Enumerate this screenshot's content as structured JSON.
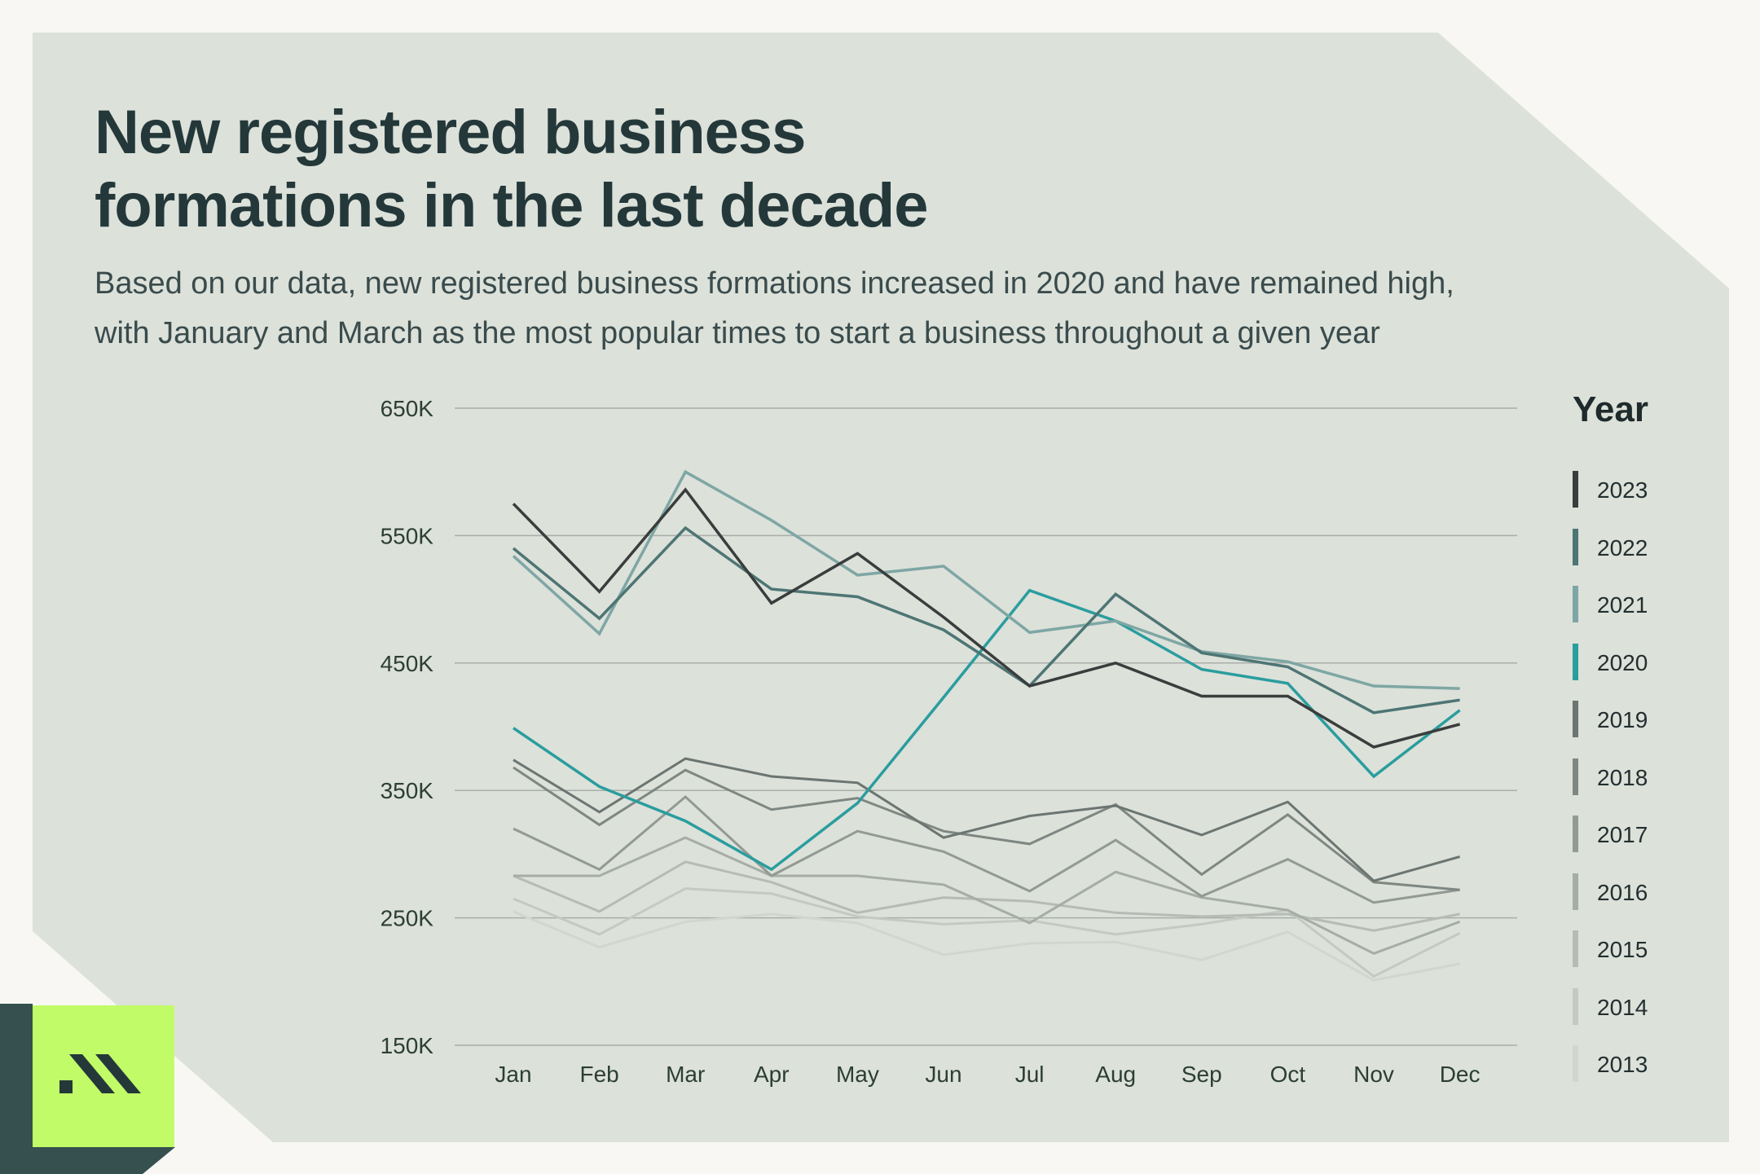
{
  "header": {
    "title_line1": "New registered business",
    "title_line2": "formations in the last decade",
    "subtitle_line1": "Based on our data, new registered business formations increased in 2020 and have remained high,",
    "subtitle_line2": "with January and March as the most popular times to start a business throughout a given year"
  },
  "legend": {
    "title": "Year"
  },
  "logo": {
    "name": "brand-logo-icon",
    "colors": {
      "square": "#c1fc68",
      "corner": "#35504f",
      "mark": "#24383a"
    }
  },
  "colors": {
    "background": "#f8f7f3",
    "panel": "#dce1da",
    "grid": "#a9aea9",
    "tick_label": "#2c3f30"
  },
  "chart_data": {
    "type": "line",
    "title": "New registered business formations in the last decade",
    "xlabel": "",
    "ylabel": "",
    "ylim": [
      150000,
      650000
    ],
    "yticks": [
      150000,
      250000,
      350000,
      450000,
      550000,
      650000
    ],
    "ytick_labels": [
      "150K",
      "250K",
      "350K",
      "450K",
      "550K",
      "650K"
    ],
    "grid": true,
    "legend_position": "right",
    "categories": [
      "Jan",
      "Feb",
      "Mar",
      "Apr",
      "May",
      "Jun",
      "Jul",
      "Aug",
      "Sep",
      "Oct",
      "Nov",
      "Dec"
    ],
    "series": [
      {
        "name": "2013",
        "color": "#d2d5d0",
        "width": 3,
        "values": [
          255000,
          227000,
          247000,
          253000,
          246000,
          221000,
          230000,
          231000,
          217000,
          239000,
          201000,
          214000
        ]
      },
      {
        "name": "2014",
        "color": "#c5c9c4",
        "width": 3,
        "values": [
          265000,
          237000,
          273000,
          269000,
          251000,
          245000,
          248000,
          237000,
          245000,
          256000,
          204000,
          238000
        ]
      },
      {
        "name": "2015",
        "color": "#b6bbb5",
        "width": 3,
        "values": [
          283000,
          255000,
          294000,
          278000,
          254000,
          266000,
          263000,
          254000,
          251000,
          253000,
          240000,
          253000
        ]
      },
      {
        "name": "2016",
        "color": "#a6aca6",
        "width": 3,
        "values": [
          283000,
          283000,
          313000,
          283000,
          283000,
          276000,
          246000,
          286000,
          266000,
          256000,
          222000,
          247000
        ]
      },
      {
        "name": "2017",
        "color": "#939a94",
        "width": 3,
        "values": [
          320000,
          288000,
          345000,
          283000,
          318000,
          302000,
          271000,
          311000,
          267000,
          296000,
          262000,
          272000
        ]
      },
      {
        "name": "2018",
        "color": "#7f8782",
        "width": 3,
        "values": [
          368000,
          323000,
          366000,
          335000,
          344000,
          318000,
          308000,
          339000,
          284000,
          331000,
          278000,
          272000
        ]
      },
      {
        "name": "2019",
        "color": "#6b7571",
        "width": 3,
        "values": [
          374000,
          333000,
          375000,
          361000,
          356000,
          313000,
          330000,
          338000,
          315000,
          341000,
          279000,
          298000
        ]
      },
      {
        "name": "2020",
        "color": "#2a9d9e",
        "width": 3.5,
        "values": [
          399000,
          353000,
          326000,
          288000,
          340000,
          423000,
          507000,
          483000,
          445000,
          434000,
          361000,
          413000
        ]
      },
      {
        "name": "2021",
        "color": "#7ea6a4",
        "width": 3.5,
        "values": [
          534000,
          473000,
          600000,
          562000,
          519000,
          526000,
          474000,
          483000,
          459000,
          451000,
          432000,
          430000
        ]
      },
      {
        "name": "2022",
        "color": "#4d7574",
        "width": 3.5,
        "values": [
          540000,
          485000,
          556000,
          508000,
          502000,
          476000,
          432000,
          504000,
          458000,
          447000,
          411000,
          421000
        ]
      },
      {
        "name": "2023",
        "color": "#3a3d3c",
        "width": 3.5,
        "values": [
          575000,
          506000,
          586000,
          497000,
          536000,
          486000,
          432000,
          450000,
          424000,
          424000,
          384000,
          402000
        ]
      }
    ]
  }
}
